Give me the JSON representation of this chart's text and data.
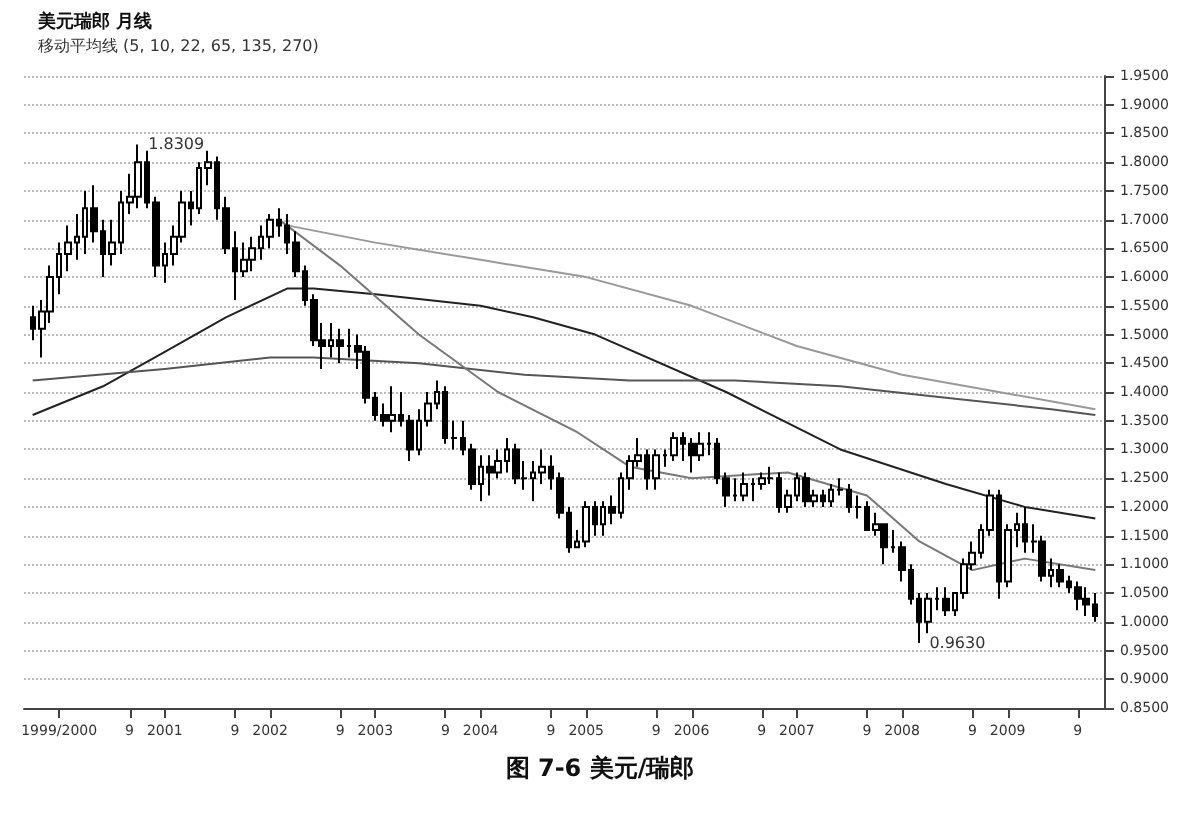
{
  "chart_data": {
    "type": "candlestick",
    "title": "美元瑞郎 月线",
    "subtitle": "移动平均线 (5, 10, 22, 65, 135, 270)",
    "annotations": [
      {
        "text": "1.8309",
        "x": "2000-10",
        "y": 1.8309
      },
      {
        "text": "0.9630",
        "x": "2008-03",
        "y": 0.963
      },
      "图 7-6 美元/瑞郎"
    ],
    "x": [
      "1999-10",
      "1999-11",
      "1999-12",
      "2000-01",
      "2000-02",
      "2000-03",
      "2000-04",
      "2000-05",
      "2000-06",
      "2000-07",
      "2000-08",
      "2000-09",
      "2000-10",
      "2000-11",
      "2000-12",
      "2001-01",
      "2001-02",
      "2001-03",
      "2001-04",
      "2001-05",
      "2001-06",
      "2001-07",
      "2001-08",
      "2001-09",
      "2001-10",
      "2001-11",
      "2001-12",
      "2002-01",
      "2002-02",
      "2002-03",
      "2002-04",
      "2002-05",
      "2002-06",
      "2002-07",
      "2002-08",
      "2002-09",
      "2002-10",
      "2002-11",
      "2002-12",
      "2003-01",
      "2003-02",
      "2003-03",
      "2003-04",
      "2003-05",
      "2003-06",
      "2003-07",
      "2003-08",
      "2003-09",
      "2003-10",
      "2003-11",
      "2003-12",
      "2004-01",
      "2004-02",
      "2004-03",
      "2004-04",
      "2004-05",
      "2004-06",
      "2004-07",
      "2004-08",
      "2004-09",
      "2004-10",
      "2004-11",
      "2004-12",
      "2005-01",
      "2005-02",
      "2005-03",
      "2005-04",
      "2005-05",
      "2005-06",
      "2005-07",
      "2005-08",
      "2005-09",
      "2005-10",
      "2005-11",
      "2005-12",
      "2006-01",
      "2006-02",
      "2006-03",
      "2006-04",
      "2006-05",
      "2006-06",
      "2006-07",
      "2006-08",
      "2006-09",
      "2006-10",
      "2006-11",
      "2006-12",
      "2007-01",
      "2007-02",
      "2007-03",
      "2007-04",
      "2007-05",
      "2007-06",
      "2007-07",
      "2007-08",
      "2007-09",
      "2007-10",
      "2007-11",
      "2007-12",
      "2008-01",
      "2008-02",
      "2008-03",
      "2008-04",
      "2008-05",
      "2008-06",
      "2008-07",
      "2008-08",
      "2008-09",
      "2008-10",
      "2008-11",
      "2008-12",
      "2009-01",
      "2009-02",
      "2009-03",
      "2009-04",
      "2009-05",
      "2009-06",
      "2009-07",
      "2009-08",
      "2009-09",
      "2009-10",
      "2009-11"
    ],
    "series": [
      {
        "color": "#000000",
        "ohlc": [
          [
            1.53,
            1.55,
            1.49,
            1.51
          ],
          [
            1.51,
            1.56,
            1.46,
            1.54
          ],
          [
            1.54,
            1.62,
            1.52,
            1.6
          ],
          [
            1.6,
            1.66,
            1.57,
            1.64
          ],
          [
            1.64,
            1.69,
            1.61,
            1.66
          ],
          [
            1.66,
            1.71,
            1.63,
            1.67
          ],
          [
            1.67,
            1.75,
            1.64,
            1.72
          ],
          [
            1.72,
            1.76,
            1.66,
            1.68
          ],
          [
            1.68,
            1.7,
            1.6,
            1.64
          ],
          [
            1.64,
            1.7,
            1.62,
            1.66
          ],
          [
            1.66,
            1.75,
            1.64,
            1.73
          ],
          [
            1.73,
            1.78,
            1.71,
            1.74
          ],
          [
            1.74,
            1.8309,
            1.72,
            1.8
          ],
          [
            1.8,
            1.82,
            1.72,
            1.73
          ],
          [
            1.73,
            1.74,
            1.6,
            1.62
          ],
          [
            1.62,
            1.66,
            1.59,
            1.64
          ],
          [
            1.64,
            1.69,
            1.62,
            1.67
          ],
          [
            1.67,
            1.75,
            1.66,
            1.73
          ],
          [
            1.73,
            1.75,
            1.69,
            1.72
          ],
          [
            1.72,
            1.8,
            1.71,
            1.79
          ],
          [
            1.79,
            1.82,
            1.76,
            1.8
          ],
          [
            1.8,
            1.81,
            1.7,
            1.72
          ],
          [
            1.72,
            1.74,
            1.64,
            1.65
          ],
          [
            1.65,
            1.68,
            1.56,
            1.61
          ],
          [
            1.61,
            1.66,
            1.6,
            1.63
          ],
          [
            1.63,
            1.67,
            1.61,
            1.65
          ],
          [
            1.65,
            1.69,
            1.63,
            1.67
          ],
          [
            1.67,
            1.71,
            1.65,
            1.7
          ],
          [
            1.7,
            1.72,
            1.67,
            1.69
          ],
          [
            1.69,
            1.71,
            1.64,
            1.66
          ],
          [
            1.66,
            1.68,
            1.6,
            1.61
          ],
          [
            1.61,
            1.62,
            1.55,
            1.56
          ],
          [
            1.56,
            1.57,
            1.48,
            1.49
          ],
          [
            1.49,
            1.52,
            1.44,
            1.48
          ],
          [
            1.48,
            1.52,
            1.46,
            1.49
          ],
          [
            1.49,
            1.51,
            1.45,
            1.48
          ],
          [
            1.48,
            1.51,
            1.46,
            1.48
          ],
          [
            1.48,
            1.5,
            1.44,
            1.47
          ],
          [
            1.47,
            1.48,
            1.38,
            1.39
          ],
          [
            1.39,
            1.4,
            1.35,
            1.36
          ],
          [
            1.36,
            1.38,
            1.34,
            1.35
          ],
          [
            1.35,
            1.41,
            1.33,
            1.36
          ],
          [
            1.36,
            1.4,
            1.34,
            1.35
          ],
          [
            1.35,
            1.36,
            1.28,
            1.3
          ],
          [
            1.3,
            1.37,
            1.29,
            1.35
          ],
          [
            1.35,
            1.4,
            1.34,
            1.38
          ],
          [
            1.38,
            1.42,
            1.37,
            1.4
          ],
          [
            1.4,
            1.41,
            1.31,
            1.32
          ],
          [
            1.32,
            1.35,
            1.3,
            1.32
          ],
          [
            1.32,
            1.35,
            1.29,
            1.3
          ],
          [
            1.3,
            1.31,
            1.23,
            1.24
          ],
          [
            1.24,
            1.29,
            1.21,
            1.27
          ],
          [
            1.27,
            1.29,
            1.22,
            1.26
          ],
          [
            1.26,
            1.3,
            1.25,
            1.28
          ],
          [
            1.28,
            1.32,
            1.26,
            1.3
          ],
          [
            1.3,
            1.31,
            1.24,
            1.25
          ],
          [
            1.25,
            1.28,
            1.23,
            1.25
          ],
          [
            1.25,
            1.28,
            1.21,
            1.26
          ],
          [
            1.26,
            1.3,
            1.24,
            1.27
          ],
          [
            1.27,
            1.29,
            1.23,
            1.25
          ],
          [
            1.25,
            1.26,
            1.18,
            1.19
          ],
          [
            1.19,
            1.2,
            1.12,
            1.13
          ],
          [
            1.13,
            1.16,
            1.13,
            1.14
          ],
          [
            1.14,
            1.21,
            1.13,
            1.2
          ],
          [
            1.2,
            1.21,
            1.15,
            1.17
          ],
          [
            1.17,
            1.21,
            1.15,
            1.2
          ],
          [
            1.2,
            1.22,
            1.17,
            1.19
          ],
          [
            1.19,
            1.26,
            1.18,
            1.25
          ],
          [
            1.25,
            1.29,
            1.23,
            1.28
          ],
          [
            1.28,
            1.32,
            1.27,
            1.29
          ],
          [
            1.29,
            1.3,
            1.23,
            1.25
          ],
          [
            1.25,
            1.3,
            1.23,
            1.29
          ],
          [
            1.29,
            1.3,
            1.27,
            1.29
          ],
          [
            1.29,
            1.33,
            1.28,
            1.32
          ],
          [
            1.32,
            1.33,
            1.28,
            1.31
          ],
          [
            1.31,
            1.32,
            1.26,
            1.29
          ],
          [
            1.29,
            1.33,
            1.28,
            1.31
          ],
          [
            1.31,
            1.33,
            1.29,
            1.31
          ],
          [
            1.31,
            1.32,
            1.24,
            1.25
          ],
          [
            1.25,
            1.26,
            1.2,
            1.22
          ],
          [
            1.22,
            1.25,
            1.21,
            1.22
          ],
          [
            1.22,
            1.26,
            1.21,
            1.24
          ],
          [
            1.24,
            1.25,
            1.21,
            1.24
          ],
          [
            1.24,
            1.26,
            1.23,
            1.25
          ],
          [
            1.25,
            1.27,
            1.24,
            1.25
          ],
          [
            1.25,
            1.26,
            1.19,
            1.2
          ],
          [
            1.2,
            1.23,
            1.19,
            1.22
          ],
          [
            1.22,
            1.26,
            1.21,
            1.25
          ],
          [
            1.25,
            1.26,
            1.2,
            1.21
          ],
          [
            1.21,
            1.23,
            1.2,
            1.22
          ],
          [
            1.22,
            1.23,
            1.2,
            1.21
          ],
          [
            1.21,
            1.24,
            1.2,
            1.23
          ],
          [
            1.23,
            1.25,
            1.22,
            1.23
          ],
          [
            1.23,
            1.24,
            1.19,
            1.2
          ],
          [
            1.2,
            1.22,
            1.18,
            1.2
          ],
          [
            1.2,
            1.21,
            1.16,
            1.16
          ],
          [
            1.16,
            1.19,
            1.15,
            1.17
          ],
          [
            1.17,
            1.17,
            1.1,
            1.13
          ],
          [
            1.13,
            1.16,
            1.12,
            1.13
          ],
          [
            1.13,
            1.14,
            1.07,
            1.09
          ],
          [
            1.09,
            1.1,
            1.03,
            1.04
          ],
          [
            1.04,
            1.05,
            0.963,
            1.0
          ],
          [
            1.0,
            1.05,
            0.98,
            1.04
          ],
          [
            1.04,
            1.06,
            1.02,
            1.04
          ],
          [
            1.04,
            1.06,
            1.01,
            1.02
          ],
          [
            1.02,
            1.05,
            1.01,
            1.05
          ],
          [
            1.05,
            1.11,
            1.04,
            1.1
          ],
          [
            1.1,
            1.14,
            1.09,
            1.12
          ],
          [
            1.12,
            1.17,
            1.11,
            1.16
          ],
          [
            1.16,
            1.23,
            1.15,
            1.22
          ],
          [
            1.22,
            1.23,
            1.04,
            1.07
          ],
          [
            1.07,
            1.17,
            1.06,
            1.16
          ],
          [
            1.16,
            1.19,
            1.13,
            1.17
          ],
          [
            1.17,
            1.2,
            1.12,
            1.14
          ],
          [
            1.14,
            1.17,
            1.12,
            1.14
          ],
          [
            1.14,
            1.15,
            1.07,
            1.08
          ],
          [
            1.08,
            1.11,
            1.06,
            1.09
          ],
          [
            1.09,
            1.1,
            1.06,
            1.07
          ],
          [
            1.07,
            1.08,
            1.05,
            1.06
          ],
          [
            1.06,
            1.07,
            1.02,
            1.04
          ],
          [
            1.04,
            1.06,
            1.01,
            1.03
          ],
          [
            1.03,
            1.05,
            1.0,
            1.01
          ]
        ]
      },
      {
        "type": "line",
        "color": "#222222",
        "x": [
          "1999-10",
          "2000-06",
          "2001-01",
          "2001-08",
          "2002-03",
          "2002-06",
          "2003-01",
          "2004-01",
          "2004-07",
          "2005-02",
          "2006-05",
          "2007-06",
          "2008-06",
          "2009-03",
          "2009-11"
        ],
        "values": [
          1.36,
          1.41,
          1.47,
          1.53,
          1.58,
          1.58,
          1.57,
          1.55,
          1.53,
          1.5,
          1.4,
          1.3,
          1.24,
          1.2,
          1.18
        ]
      },
      {
        "type": "line",
        "color": "#555555",
        "x": [
          "1999-10",
          "2001-01",
          "2002-01",
          "2002-06",
          "2003-06",
          "2004-06",
          "2005-06",
          "2006-06",
          "2007-06",
          "2008-06",
          "2009-06",
          "2009-11"
        ],
        "values": [
          1.42,
          1.44,
          1.46,
          1.46,
          1.45,
          1.43,
          1.42,
          1.42,
          1.41,
          1.39,
          1.37,
          1.36
        ]
      },
      {
        "type": "line",
        "color": "#999999",
        "x": [
          "2002-03",
          "2003-01",
          "2004-01",
          "2005-01",
          "2006-01",
          "2007-01",
          "2008-01",
          "2008-12",
          "2009-11"
        ],
        "values": [
          1.69,
          1.66,
          1.63,
          1.6,
          1.55,
          1.48,
          1.43,
          1.4,
          1.37
        ]
      },
      {
        "type": "line",
        "color": "#777777",
        "x": [
          "2002-02",
          "2002-09",
          "2003-06",
          "2004-03",
          "2004-12",
          "2005-06",
          "2006-01",
          "2006-12",
          "2007-09",
          "2008-03",
          "2008-09",
          "2009-03",
          "2009-11"
        ],
        "values": [
          1.7,
          1.62,
          1.5,
          1.4,
          1.33,
          1.27,
          1.25,
          1.26,
          1.22,
          1.14,
          1.09,
          1.11,
          1.09
        ]
      }
    ],
    "xlim": [
      "1999-09",
      "2009-12"
    ],
    "xticks": [
      {
        "value": "2000-01",
        "label": "1999/2000"
      },
      {
        "value": "2000-09",
        "label": "9"
      },
      {
        "value": "2001-01",
        "label": "2001"
      },
      {
        "value": "2001-09",
        "label": "9"
      },
      {
        "value": "2002-01",
        "label": "2002"
      },
      {
        "value": "2002-09",
        "label": "9"
      },
      {
        "value": "2003-01",
        "label": "2003"
      },
      {
        "value": "2003-09",
        "label": "9"
      },
      {
        "value": "2004-01",
        "label": "2004"
      },
      {
        "value": "2004-09",
        "label": "9"
      },
      {
        "value": "2005-01",
        "label": "2005"
      },
      {
        "value": "2005-09",
        "label": "9"
      },
      {
        "value": "2006-01",
        "label": "2006"
      },
      {
        "value": "2006-09",
        "label": "9"
      },
      {
        "value": "2007-01",
        "label": "2007"
      },
      {
        "value": "2007-09",
        "label": "9"
      },
      {
        "value": "2008-01",
        "label": "2008"
      },
      {
        "value": "2008-09",
        "label": "9"
      },
      {
        "value": "2009-01",
        "label": "2009"
      },
      {
        "value": "2009-09",
        "label": "9"
      }
    ],
    "ylim": [
      0.85,
      1.95
    ],
    "yticks": [
      {
        "value": 0.85,
        "label": "0.8500"
      },
      {
        "value": 0.9,
        "label": "0.9000"
      },
      {
        "value": 0.95,
        "label": "0.9500"
      },
      {
        "value": 1.0,
        "label": "1.0000"
      },
      {
        "value": 1.05,
        "label": "1.0500"
      },
      {
        "value": 1.1,
        "label": "1.1000"
      },
      {
        "value": 1.15,
        "label": "1.1500"
      },
      {
        "value": 1.2,
        "label": "1.2000"
      },
      {
        "value": 1.25,
        "label": "1.2500"
      },
      {
        "value": 1.3,
        "label": "1.3000"
      },
      {
        "value": 1.35,
        "label": "1.3500"
      },
      {
        "value": 1.4,
        "label": "1.4000"
      },
      {
        "value": 1.45,
        "label": "1.4500"
      },
      {
        "value": 1.5,
        "label": "1.5000"
      },
      {
        "value": 1.55,
        "label": "1.5500"
      },
      {
        "value": 1.6,
        "label": "1.6000"
      },
      {
        "value": 1.65,
        "label": "1.6500"
      },
      {
        "value": 1.7,
        "label": "1.7000"
      },
      {
        "value": 1.75,
        "label": "1.7500"
      },
      {
        "value": 1.8,
        "label": "1.8000"
      },
      {
        "value": 1.85,
        "label": "1.8500"
      },
      {
        "value": 1.9,
        "label": "1.9000"
      },
      {
        "value": 1.95,
        "label": "1.9500"
      }
    ],
    "grid": "y",
    "marker": "none"
  }
}
